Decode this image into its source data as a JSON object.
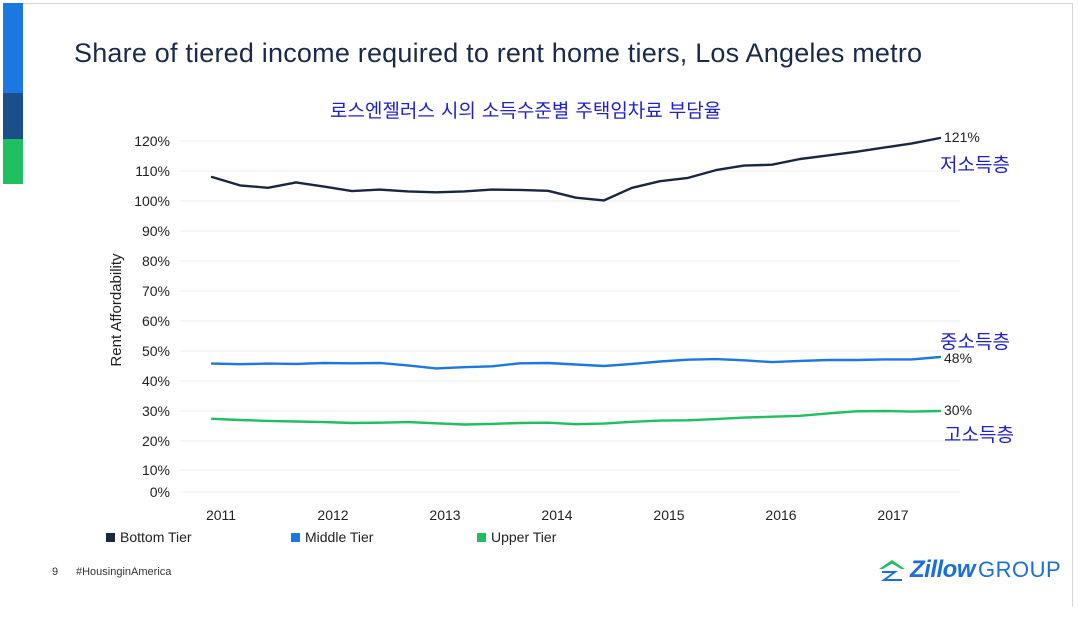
{
  "slide": {
    "title": "Share of tiered income required to rent home tiers, Los Angeles metro",
    "subtitle_kr": "로스엔젤러스 시의 소득수준별 주택임차료 부담율",
    "page_number": "9",
    "hashtag": "#HousinginAmerica",
    "logo": {
      "word": "Zillow",
      "group": "GROUP"
    },
    "colors": {
      "bottom": "#1a2740",
      "middle": "#1a78e0",
      "upper": "#1fbf5f",
      "accent_blue": "#1a78e0",
      "accent_navy": "#1b4f8c",
      "accent_green": "#1fbf5f",
      "kr_text": "#1e22cc"
    }
  },
  "annotations": {
    "bottom_end": "121%",
    "middle_end": "48%",
    "upper_end": "30%",
    "bottom_kr": "저소득층",
    "middle_kr": "중소득층",
    "upper_kr": "고소득층"
  },
  "chart_data": {
    "type": "line",
    "ylabel": "Rent Affordability",
    "xlabel": "",
    "ylim": [
      0,
      120
    ],
    "yticks": [
      0,
      10,
      20,
      30,
      40,
      50,
      60,
      70,
      80,
      90,
      100,
      110,
      120
    ],
    "ytick_labels": [
      "0%",
      "10%",
      "20%",
      "30%",
      "40%",
      "50%",
      "60%",
      "70%",
      "80%",
      "90%",
      "100%",
      "110%",
      "120%"
    ],
    "xlim": [
      2010.9,
      2017.6
    ],
    "xticks": [
      2011,
      2012,
      2013,
      2014,
      2015,
      2016,
      2017
    ],
    "xtick_labels": [
      "2011",
      "2012",
      "2013",
      "2014",
      "2015",
      "2016",
      "2017"
    ],
    "x": [
      2010.92,
      2011.17,
      2011.42,
      2011.67,
      2011.92,
      2012.17,
      2012.42,
      2012.67,
      2012.92,
      2013.17,
      2013.42,
      2013.67,
      2013.92,
      2014.17,
      2014.42,
      2014.67,
      2014.92,
      2015.17,
      2015.42,
      2015.67,
      2015.92,
      2016.17,
      2016.42,
      2016.67,
      2016.92,
      2017.17,
      2017.42
    ],
    "series": [
      {
        "name": "Bottom Tier",
        "key": "bottom",
        "values": [
          108,
          105.2,
          104.4,
          106.2,
          104.8,
          103.3,
          103.8,
          103.2,
          102.9,
          103.2,
          103.8,
          103.7,
          103.4,
          101.1,
          100.2,
          104.4,
          106.6,
          107.7,
          110.3,
          111.8,
          112.1,
          114.0,
          115.2,
          116.4,
          117.8,
          119.2,
          121
        ]
      },
      {
        "name": "Middle Tier",
        "key": "middle",
        "values": [
          45.8,
          45.6,
          45.8,
          45.7,
          46.0,
          45.9,
          46.0,
          45.2,
          44.2,
          44.6,
          44.9,
          45.9,
          46.0,
          45.5,
          45.0,
          45.7,
          46.5,
          47.1,
          47.3,
          46.9,
          46.3,
          46.7,
          47.0,
          47.0,
          47.2,
          47.2,
          48
        ]
      },
      {
        "name": "Upper Tier",
        "key": "upper",
        "values": [
          27.4,
          27.0,
          26.7,
          26.5,
          26.3,
          26.0,
          26.1,
          26.3,
          25.9,
          25.5,
          25.7,
          26.0,
          26.1,
          25.6,
          25.8,
          26.4,
          26.8,
          26.9,
          27.3,
          27.8,
          28.1,
          28.4,
          29.2,
          29.9,
          30.0,
          29.8,
          30
        ]
      }
    ],
    "legend": [
      {
        "label": "Bottom Tier",
        "key": "bottom"
      },
      {
        "label": "Middle Tier",
        "key": "middle"
      },
      {
        "label": "Upper Tier",
        "key": "upper"
      }
    ],
    "legend_position": "bottom-left"
  }
}
